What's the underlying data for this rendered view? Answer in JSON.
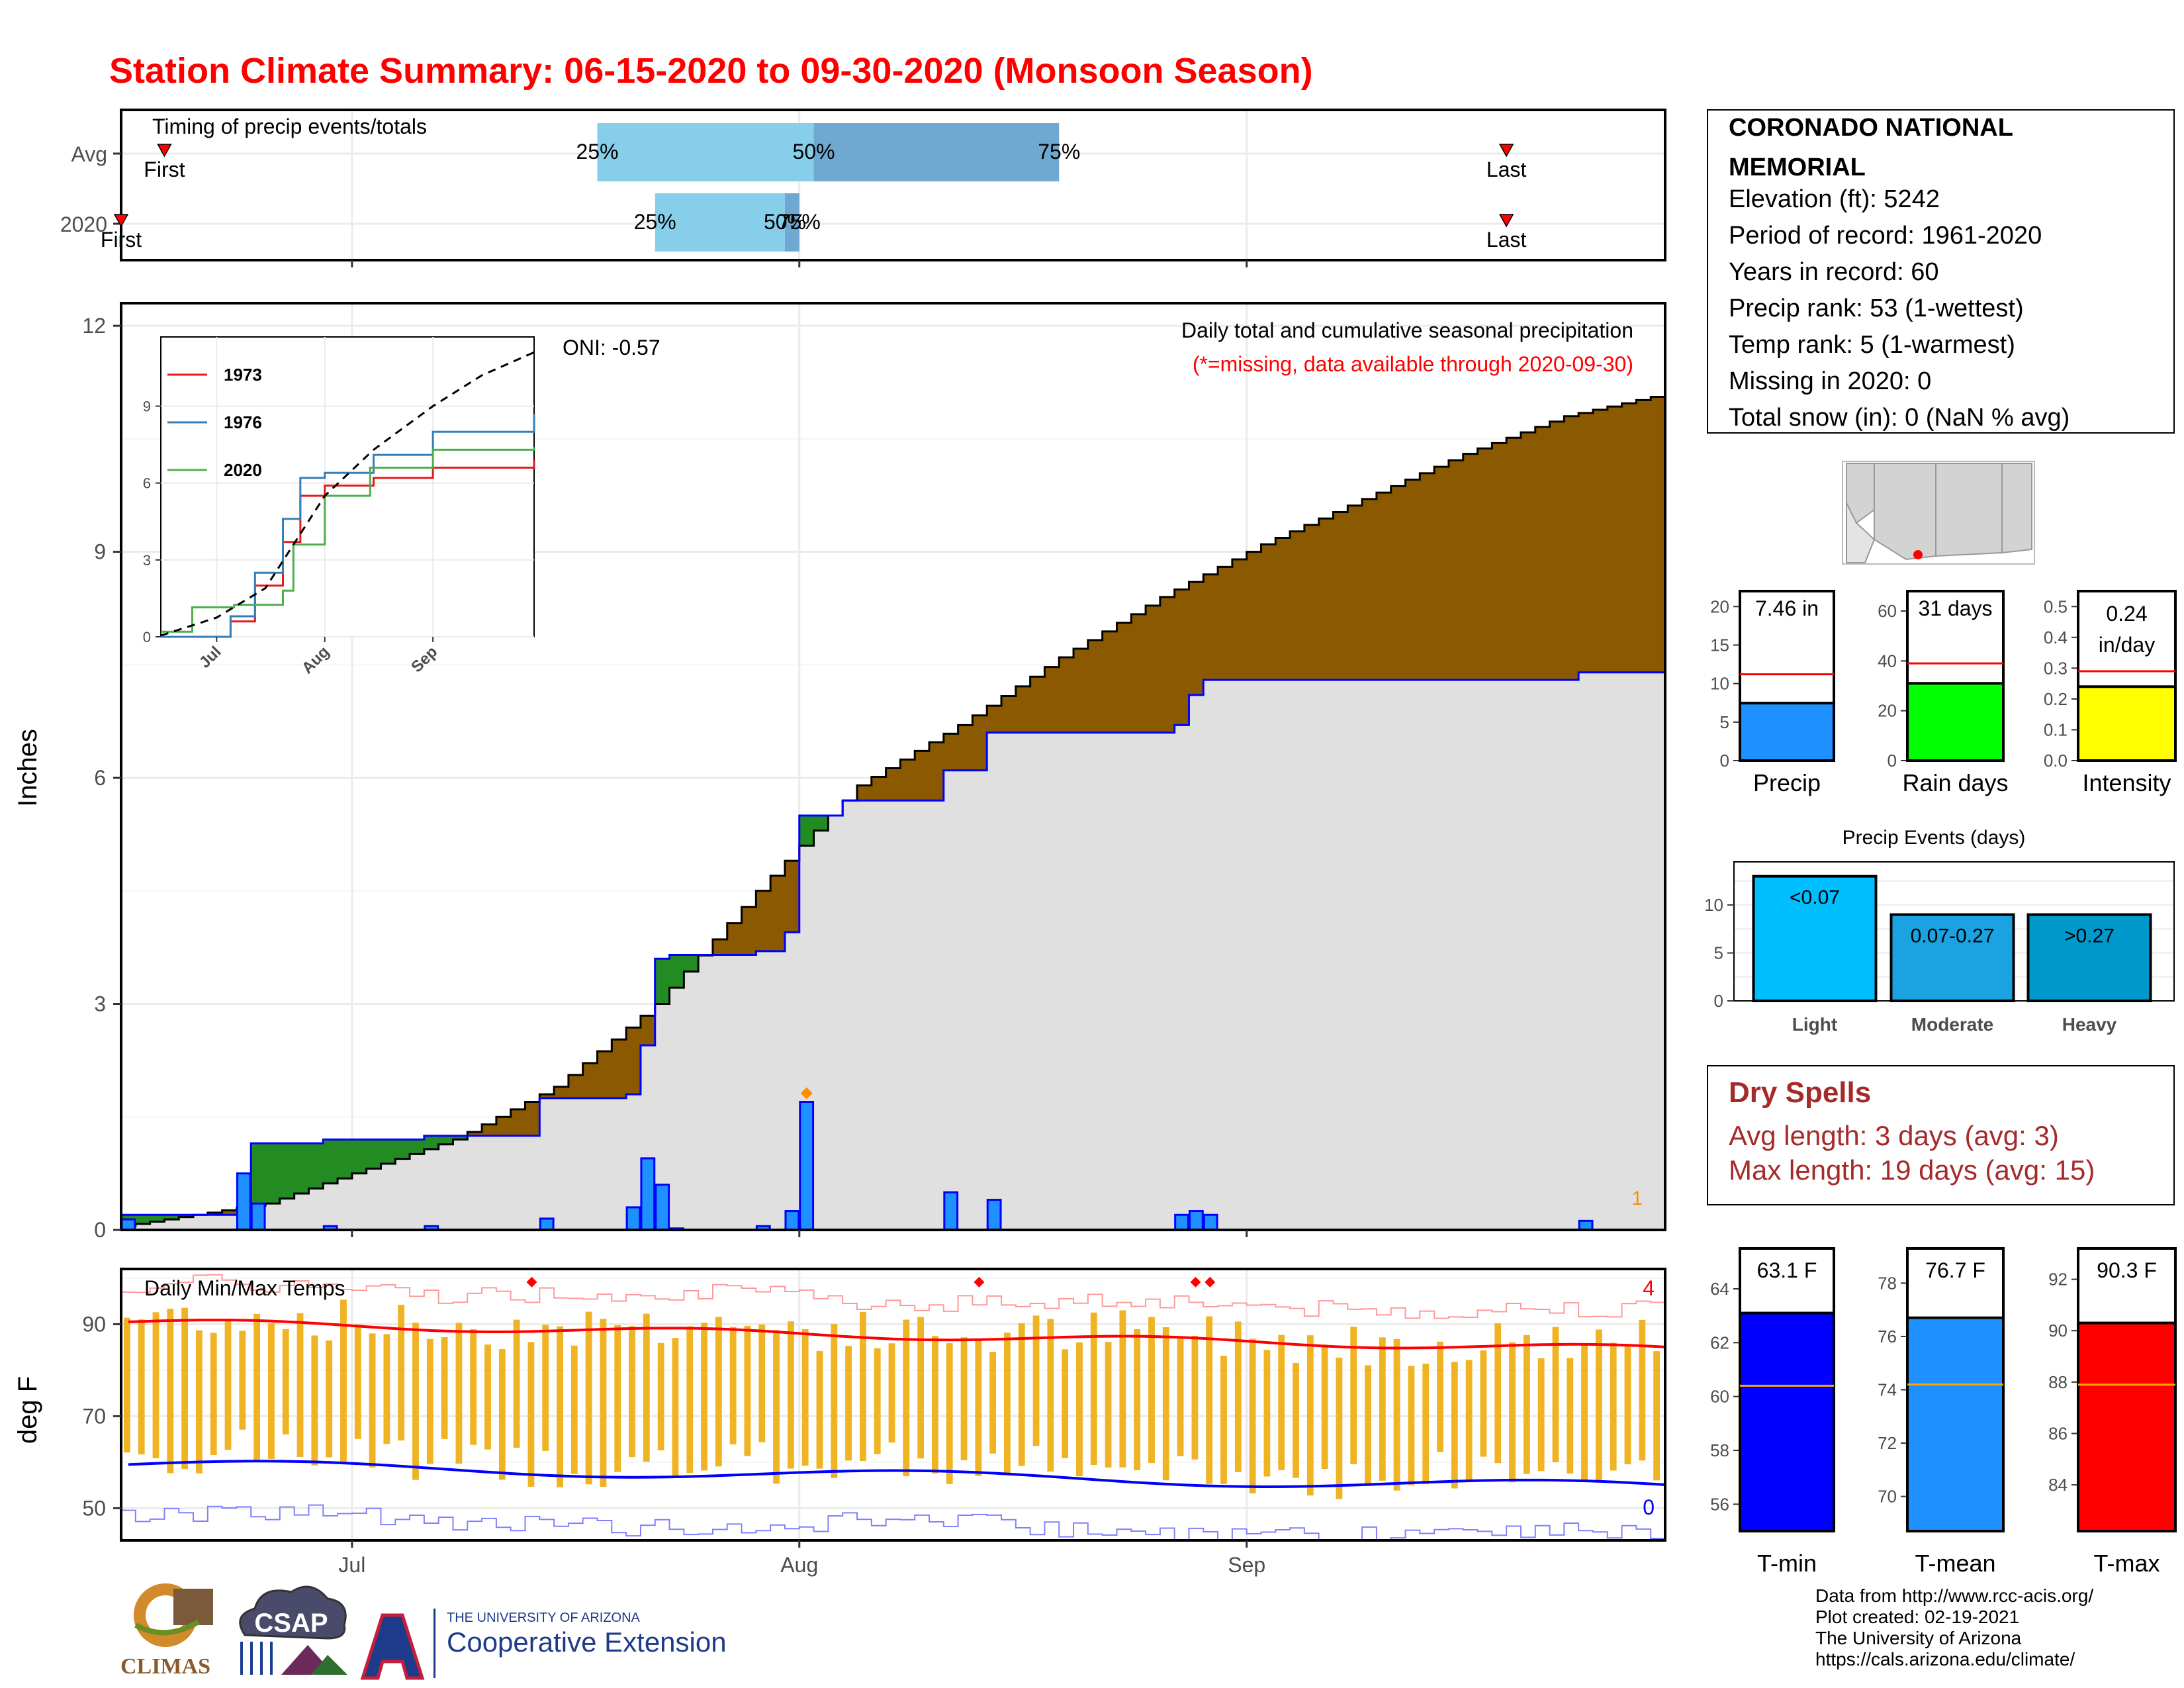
{
  "page": {
    "title": "Station Climate Summary: 06-15-2020 to 09-30-2020 (Monsoon Season)"
  },
  "timing_panel": {
    "label": "Timing of precip events/totals",
    "rows": [
      "Avg",
      "2020"
    ],
    "avg": {
      "q25_label": "25%",
      "q50_label": "50%",
      "q75_label": "75%",
      "first_label": "First",
      "last_label": "Last",
      "first_date": "2020-06-18",
      "q25": "2020-07-18",
      "q50": "2020-08-02",
      "q75": "2020-08-19",
      "last": "2020-09-19"
    },
    "y2020": {
      "q25_label": "25%",
      "q50_label": "50%",
      "q75_label": "75%",
      "first_label": "First",
      "last_label": "Last",
      "first_date": "2020-06-15",
      "q25": "2020-07-22",
      "q50": "2020-07-31",
      "q75": "2020-08-01",
      "last": "2020-09-19"
    },
    "colors": {
      "light": "#87ceeb",
      "mid": "#6fa8d0",
      "marker": "#ff0000"
    }
  },
  "main_panel": {
    "ylabel": "Inches",
    "header": "Daily total and cumulative seasonal precipitation",
    "subheader": "(*=missing, data available through 2020-09-30)",
    "oni": "ONI: -0.57",
    "corner_count": "1",
    "yticks": [
      "0",
      "3",
      "6",
      "9",
      "12"
    ]
  },
  "inset": {
    "legend": [
      {
        "name": "1973",
        "color": "#e41a1c"
      },
      {
        "name": "1976",
        "color": "#377eb8"
      },
      {
        "name": "2020",
        "color": "#4daf4a"
      }
    ],
    "yticks": [
      "0",
      "3",
      "6",
      "9"
    ],
    "xticks": [
      "Jul",
      "Aug",
      "Sep"
    ]
  },
  "temp_panel": {
    "ylabel": "deg F",
    "label": "Daily Min/Max Temps",
    "count_max": "4",
    "count_min": "0",
    "yticks": [
      "50",
      "70",
      "90"
    ],
    "xticks": [
      "Jul",
      "Aug",
      "Sep"
    ]
  },
  "info": {
    "lines": [
      "CORONADO NATIONAL",
      "MEMORIAL",
      "Elevation (ft): 5242",
      "Period of record: 1961-2020",
      "Years in record: 60",
      "Precip rank: 53 (1-wettest)",
      "Temp rank: 5 (1-warmest)",
      "Missing in 2020: 0",
      "Total snow (in): 0 (NaN % avg)"
    ]
  },
  "mini_bars": [
    {
      "value_label": "7.46 in",
      "xlabel": "Precip",
      "value": 7.46,
      "avg": 11.2,
      "ymax": 22,
      "yticks": [
        "0",
        "5",
        "10",
        "15",
        "20"
      ],
      "color": "#1e90ff"
    },
    {
      "value_label": "31 days",
      "xlabel": "Rain days",
      "value": 31,
      "avg": 39,
      "ymax": 68,
      "yticks": [
        "0",
        "20",
        "40",
        "60"
      ],
      "color": "#00ff00"
    },
    {
      "value_label": "0.24 in/day",
      "value_line1": "0.24",
      "value_line2": "in/day",
      "xlabel": "Intensity",
      "value": 0.24,
      "avg": 0.29,
      "ymax": 0.55,
      "yticks": [
        "0.0",
        "0.1",
        "0.2",
        "0.3",
        "0.4",
        "0.5"
      ],
      "color": "#ffff00"
    }
  ],
  "events": {
    "title": "Precip Events (days)",
    "categories": [
      "Light",
      "Moderate",
      "Heavy"
    ],
    "value_labels": [
      "<0.07",
      "0.07-0.27",
      ">0.27"
    ],
    "values": [
      13,
      9,
      9
    ],
    "colors": [
      "#00bfff",
      "#1aa3e0",
      "#0099cc"
    ],
    "yticks": [
      "0",
      "5",
      "10"
    ]
  },
  "dry_spells": {
    "title": "Dry Spells",
    "avg": "Avg length: 3 days (avg: 3)",
    "max": "Max length: 19 days (avg: 15)"
  },
  "temp_bars": [
    {
      "value_label": "63.1 F",
      "xlabel": "T-min",
      "value": 63.1,
      "avg": 60.4,
      "ymin": 55,
      "ymax": 65.5,
      "yticks": [
        "56",
        "58",
        "60",
        "62",
        "64"
      ],
      "color": "#0000ff"
    },
    {
      "value_label": "76.7 F",
      "xlabel": "T-mean",
      "value": 76.7,
      "avg": 74.2,
      "ymin": 68.7,
      "ymax": 79.3,
      "yticks": [
        "70",
        "72",
        "74",
        "76",
        "78"
      ],
      "color": "#1e90ff"
    },
    {
      "value_label": "90.3 F",
      "xlabel": "T-max",
      "value": 90.3,
      "avg": 87.9,
      "ymin": 82.2,
      "ymax": 93.2,
      "yticks": [
        "84",
        "86",
        "88",
        "90",
        "92"
      ],
      "color": "#ff0000"
    }
  ],
  "credits": {
    "lines": [
      "Data from http://www.rcc-acis.org/",
      "Plot created: 02-19-2021",
      "The University of Arizona",
      "https://cals.arizona.edu/climate/"
    ],
    "logo1": "CLIMAS",
    "logo2": "CSAP",
    "logo3_top": "THE UNIVERSITY OF ARIZONA",
    "logo3_bottom": "Cooperative Extension"
  },
  "chart_data": {
    "type": "area",
    "x_start": "2020-06-15",
    "x_end": "2020-09-30",
    "xticks": [
      "Jul",
      "Aug",
      "Sep"
    ],
    "ylim": [
      0,
      12.3
    ],
    "series": [
      {
        "name": "Avg cumulative",
        "color": "#000000",
        "x": [
          "2020-06-15",
          "2020-06-25",
          "2020-07-01",
          "2020-07-08",
          "2020-07-15",
          "2020-07-22",
          "2020-07-29",
          "2020-08-05",
          "2020-08-12",
          "2020-08-19",
          "2020-08-26",
          "2020-09-02",
          "2020-09-09",
          "2020-09-16",
          "2020-09-23",
          "2020-09-30"
        ],
        "y": [
          0.05,
          0.35,
          0.75,
          1.2,
          1.9,
          3.0,
          4.5,
          5.9,
          6.7,
          7.6,
          8.4,
          9.1,
          9.7,
          10.3,
          10.8,
          11.1
        ]
      },
      {
        "name": "2020 cumulative",
        "color": "#0000ff",
        "x": [
          "2020-06-15",
          "2020-06-23",
          "2020-06-24",
          "2020-06-29",
          "2020-07-06",
          "2020-07-14",
          "2020-07-20",
          "2020-07-21",
          "2020-07-22",
          "2020-07-23",
          "2020-07-29",
          "2020-07-31",
          "2020-08-01",
          "2020-08-04",
          "2020-08-11",
          "2020-08-14",
          "2020-08-27",
          "2020-08-28",
          "2020-08-29",
          "2020-09-24",
          "2020-09-30"
        ],
        "y": [
          0.2,
          0.2,
          1.15,
          1.2,
          1.25,
          1.75,
          1.8,
          2.45,
          3.6,
          3.65,
          3.7,
          3.95,
          5.5,
          5.7,
          6.1,
          6.6,
          6.7,
          7.1,
          7.3,
          7.4,
          7.4
        ]
      }
    ],
    "daily_precip": {
      "color": "#1e90ff",
      "dates": [
        "2020-06-15",
        "2020-06-23",
        "2020-06-24",
        "2020-06-29",
        "2020-07-06",
        "2020-07-14",
        "2020-07-20",
        "2020-07-21",
        "2020-07-22",
        "2020-07-23",
        "2020-07-29",
        "2020-07-31",
        "2020-08-01",
        "2020-08-11",
        "2020-08-14",
        "2020-08-27",
        "2020-08-28",
        "2020-08-29",
        "2020-09-24"
      ],
      "values": [
        0.14,
        0.75,
        0.35,
        0.05,
        0.05,
        0.15,
        0.3,
        0.95,
        0.6,
        0.02,
        0.05,
        0.25,
        1.7,
        0.5,
        0.4,
        0.2,
        0.25,
        0.2,
        0.12
      ]
    },
    "inset_series": [
      {
        "name": "1973",
        "x": [
          "2020-06-15",
          "2020-07-05",
          "2020-07-12",
          "2020-07-20",
          "2020-07-25",
          "2020-08-01",
          "2020-08-15",
          "2020-09-01",
          "2020-09-30"
        ],
        "y": [
          0,
          0.6,
          2.0,
          3.7,
          5.5,
          5.9,
          6.2,
          6.6,
          6.9
        ]
      },
      {
        "name": "1976",
        "x": [
          "2020-06-15",
          "2020-07-05",
          "2020-07-12",
          "2020-07-20",
          "2020-07-25",
          "2020-08-01",
          "2020-08-15",
          "2020-09-01",
          "2020-09-30"
        ],
        "y": [
          0,
          0.8,
          2.5,
          4.6,
          6.2,
          6.4,
          7.1,
          8.0,
          8.7
        ]
      },
      {
        "name": "2020",
        "x": [
          "2020-06-15",
          "2020-06-24",
          "2020-07-06",
          "2020-07-20",
          "2020-07-23",
          "2020-08-01",
          "2020-08-14",
          "2020-09-01",
          "2020-09-30"
        ],
        "y": [
          0.2,
          1.15,
          1.25,
          1.8,
          3.6,
          5.5,
          6.6,
          7.3,
          7.4
        ]
      },
      {
        "name": "Avg",
        "x": [
          "2020-06-15",
          "2020-07-01",
          "2020-07-15",
          "2020-08-01",
          "2020-08-15",
          "2020-09-01",
          "2020-09-15",
          "2020-09-30"
        ],
        "y": [
          0.05,
          0.75,
          1.9,
          5.5,
          7.3,
          9.0,
          10.2,
          11.1
        ]
      }
    ],
    "temperature": {
      "ylim": [
        43,
        102
      ],
      "tmax_avg_start": 90.5,
      "tmax_avg_end": 84.5,
      "tmin_avg_start": 59.5,
      "tmin_avg_end": 54.5,
      "daily_range_color": "#f0b323"
    }
  }
}
